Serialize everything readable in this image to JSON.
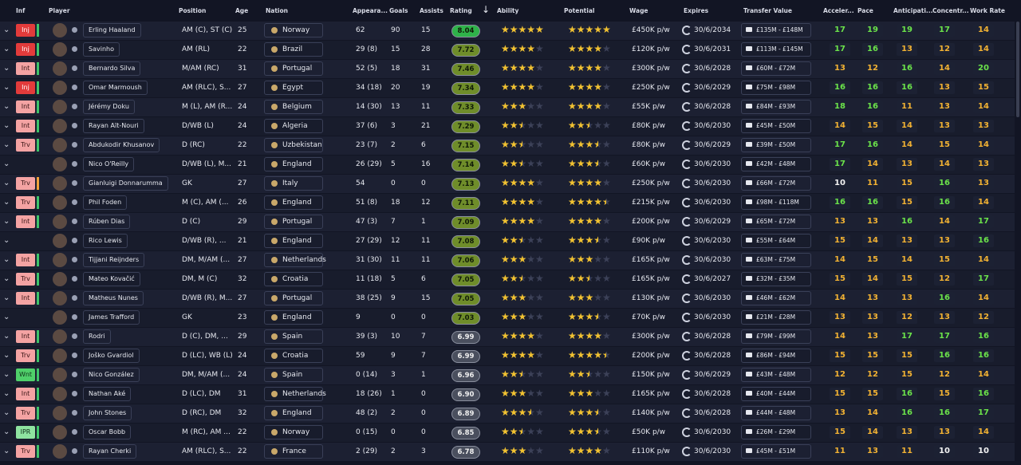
{
  "header": {
    "columns": [
      "Inf",
      "Player",
      "Position",
      "Age",
      "Nation",
      "Appeara...",
      "Goals",
      "Assists",
      "Rating",
      "Ability",
      "Potential",
      "Wage",
      "Expires",
      "Transfer Value",
      "Acceler...",
      "Pace",
      "Anticipati...",
      "Concentr...",
      "Work Rate"
    ]
  },
  "rows": [
    {
      "inf": "Inj",
      "player": "Erling Haaland",
      "position": "AM (C), ST (C)",
      "age": "25",
      "nation": "Norway",
      "apps": "62",
      "goals": "90",
      "assists": "15",
      "rating": "8.04",
      "ability": 5,
      "potential": 5,
      "wage": "£450K p/w",
      "expires": "30/6/2034",
      "value": "£135M - £148M",
      "attrs": [
        "17",
        "19",
        "19",
        "17",
        "14"
      ]
    },
    {
      "inf": "Inj",
      "player": "Savinho",
      "position": "AM (RL)",
      "age": "22",
      "nation": "Brazil",
      "apps": "29 (8)",
      "goals": "15",
      "assists": "28",
      "rating": "7.72",
      "ability": 4,
      "potential": 4,
      "wage": "£120K p/w",
      "expires": "30/6/2031",
      "value": "£113M - £145M",
      "attrs": [
        "17",
        "16",
        "13",
        "12",
        "14"
      ]
    },
    {
      "inf": "Int",
      "player": "Bernardo Silva",
      "position": "M/AM (RC)",
      "age": "31",
      "nation": "Portugal",
      "apps": "52 (5)",
      "goals": "18",
      "assists": "31",
      "rating": "7.46",
      "ability": 4,
      "potential": 4,
      "wage": "£300K p/w",
      "expires": "30/6/2028",
      "value": "£60M - £72M",
      "attrs": [
        "13",
        "12",
        "16",
        "14",
        "20"
      ]
    },
    {
      "inf": "Inj",
      "player": "Omar Marmoush",
      "position": "AM (RLC), S...",
      "age": "27",
      "nation": "Egypt",
      "apps": "34 (18)",
      "goals": "20",
      "assists": "19",
      "rating": "7.34",
      "ability": 4,
      "potential": 4,
      "wage": "£250K p/w",
      "expires": "30/6/2029",
      "value": "£75M - £98M",
      "attrs": [
        "16",
        "16",
        "16",
        "13",
        "15"
      ]
    },
    {
      "inf": "Int",
      "player": "Jérémy Doku",
      "position": "M (L), AM (R...",
      "age": "24",
      "nation": "Belgium",
      "apps": "14 (30)",
      "goals": "13",
      "assists": "11",
      "rating": "7.33",
      "ability": 3,
      "potential": 4,
      "wage": "£55K p/w",
      "expires": "30/6/2028",
      "value": "£84M - £93M",
      "attrs": [
        "18",
        "16",
        "11",
        "13",
        "14"
      ]
    },
    {
      "inf": "Int",
      "player": "Rayan Aït-Nouri",
      "position": "D/WB (L)",
      "age": "24",
      "nation": "Algeria",
      "apps": "37 (6)",
      "goals": "3",
      "assists": "21",
      "rating": "7.29",
      "ability": 2.5,
      "potential": 2.5,
      "wage": "£80K p/w",
      "expires": "30/6/2030",
      "value": "£45M - £50M",
      "attrs": [
        "14",
        "15",
        "14",
        "13",
        "13"
      ]
    },
    {
      "inf": "Trv",
      "player": "Abdukodir Khusanov",
      "position": "D (RC)",
      "age": "22",
      "nation": "Uzbekistan",
      "apps": "23 (7)",
      "goals": "2",
      "assists": "6",
      "rating": "7.15",
      "ability": 2.5,
      "potential": 3.5,
      "wage": "£80K p/w",
      "expires": "30/6/2029",
      "value": "£39M - £50M",
      "attrs": [
        "17",
        "16",
        "14",
        "15",
        "14"
      ]
    },
    {
      "inf": null,
      "player": "Nico O'Reilly",
      "position": "D/WB (L), M...",
      "age": "21",
      "nation": "England",
      "apps": "26 (29)",
      "goals": "5",
      "assists": "16",
      "rating": "7.14",
      "ability": 2.5,
      "potential": 3.5,
      "wage": "£60K p/w",
      "expires": "30/6/2030",
      "value": "£42M - £48M",
      "attrs": [
        "17",
        "14",
        "13",
        "14",
        "13"
      ]
    },
    {
      "inf": "Trv",
      "player": "Gianluigi Donnarumma",
      "position": "GK",
      "age": "27",
      "nation": "Italy",
      "apps": "54",
      "goals": "0",
      "assists": "0",
      "rating": "7.13",
      "ability": 4,
      "potential": 4,
      "wage": "£250K p/w",
      "expires": "30/6/2030",
      "value": "£66M - £72M",
      "attrs": [
        "10",
        "11",
        "15",
        "16",
        "13"
      ]
    },
    {
      "inf": "Trv",
      "player": "Phil Foden",
      "position": "M (C), AM (...",
      "age": "26",
      "nation": "England",
      "apps": "51 (8)",
      "goals": "18",
      "assists": "12",
      "rating": "7.11",
      "ability": 4,
      "potential": 4.5,
      "wage": "£215K p/w",
      "expires": "30/6/2030",
      "value": "£98M - £118M",
      "attrs": [
        "16",
        "16",
        "15",
        "16",
        "14"
      ]
    },
    {
      "inf": "Int",
      "player": "Rúben Dias",
      "position": "D (C)",
      "age": "29",
      "nation": "Portugal",
      "apps": "47 (3)",
      "goals": "7",
      "assists": "1",
      "rating": "7.09",
      "ability": 4,
      "potential": 4,
      "wage": "£200K p/w",
      "expires": "30/6/2029",
      "value": "£65M - £72M",
      "attrs": [
        "13",
        "13",
        "16",
        "14",
        "17"
      ]
    },
    {
      "inf": null,
      "player": "Rico Lewis",
      "position": "D/WB (R), ...",
      "age": "21",
      "nation": "England",
      "apps": "27 (29)",
      "goals": "12",
      "assists": "11",
      "rating": "7.08",
      "ability": 2.5,
      "potential": 3.5,
      "wage": "£90K p/w",
      "expires": "30/6/2030",
      "value": "£55M - £64M",
      "attrs": [
        "15",
        "14",
        "13",
        "13",
        "16"
      ]
    },
    {
      "inf": "Int",
      "player": "Tijjani Reijnders",
      "position": "DM, M/AM (...",
      "age": "27",
      "nation": "Netherlands",
      "apps": "31 (30)",
      "goals": "11",
      "assists": "11",
      "rating": "7.06",
      "ability": 3,
      "potential": 3,
      "wage": "£165K p/w",
      "expires": "30/6/2030",
      "value": "£63M - £75M",
      "attrs": [
        "14",
        "15",
        "14",
        "15",
        "14"
      ]
    },
    {
      "inf": "Trv",
      "player": "Mateo Kovačić",
      "position": "DM, M (C)",
      "age": "32",
      "nation": "Croatia",
      "apps": "11 (18)",
      "goals": "5",
      "assists": "6",
      "rating": "7.05",
      "ability": 2.5,
      "potential": 2.5,
      "wage": "£165K p/w",
      "expires": "30/6/2027",
      "value": "£32M - £35M",
      "attrs": [
        "15",
        "14",
        "15",
        "12",
        "17"
      ]
    },
    {
      "inf": "Int",
      "player": "Matheus Nunes",
      "position": "D/WB (R), M...",
      "age": "27",
      "nation": "Portugal",
      "apps": "38 (25)",
      "goals": "9",
      "assists": "15",
      "rating": "7.05",
      "ability": 3,
      "potential": 3,
      "wage": "£130K p/w",
      "expires": "30/6/2030",
      "value": "£46M - £62M",
      "attrs": [
        "14",
        "13",
        "13",
        "16",
        "14"
      ]
    },
    {
      "inf": null,
      "player": "James Trafford",
      "position": "GK",
      "age": "23",
      "nation": "England",
      "apps": "9",
      "goals": "0",
      "assists": "0",
      "rating": "7.03",
      "ability": 3,
      "potential": 3.5,
      "wage": "£70K p/w",
      "expires": "30/6/2030",
      "value": "£21M - £28M",
      "attrs": [
        "13",
        "13",
        "12",
        "13",
        "12"
      ]
    },
    {
      "inf": "Int",
      "player": "Rodri",
      "position": "D (C), DM, ...",
      "age": "29",
      "nation": "Spain",
      "apps": "39 (3)",
      "goals": "10",
      "assists": "7",
      "rating": "6.99",
      "ability": 4,
      "potential": 4,
      "wage": "£300K p/w",
      "expires": "30/6/2028",
      "value": "£79M - £99M",
      "attrs": [
        "14",
        "13",
        "17",
        "17",
        "16"
      ]
    },
    {
      "inf": "Trv",
      "player": "Joško Gvardiol",
      "position": "D (LC), WB (L)",
      "age": "24",
      "nation": "Croatia",
      "apps": "59",
      "goals": "9",
      "assists": "7",
      "rating": "6.99",
      "ability": 4,
      "potential": 4.5,
      "wage": "£200K p/w",
      "expires": "30/6/2028",
      "value": "£86M - £94M",
      "attrs": [
        "15",
        "15",
        "15",
        "16",
        "16"
      ]
    },
    {
      "inf": "Wnt",
      "player": "Nico González",
      "position": "DM, M/AM (...",
      "age": "24",
      "nation": "Spain",
      "apps": "0 (14)",
      "goals": "3",
      "assists": "1",
      "rating": "6.96",
      "ability": 2.5,
      "potential": 2.5,
      "wage": "£150K p/w",
      "expires": "30/6/2029",
      "value": "£43M - £48M",
      "attrs": [
        "12",
        "12",
        "15",
        "12",
        "14"
      ]
    },
    {
      "inf": "Int",
      "player": "Nathan Aké",
      "position": "D (LC), DM",
      "age": "31",
      "nation": "Netherlands",
      "apps": "18 (26)",
      "goals": "1",
      "assists": "0",
      "rating": "6.90",
      "ability": 3,
      "potential": 3,
      "wage": "£165K p/w",
      "expires": "30/6/2028",
      "value": "£40M - £44M",
      "attrs": [
        "15",
        "15",
        "16",
        "15",
        "16"
      ]
    },
    {
      "inf": "Trv",
      "player": "John Stones",
      "position": "D (RC), DM",
      "age": "32",
      "nation": "England",
      "apps": "48 (2)",
      "goals": "2",
      "assists": "0",
      "rating": "6.89",
      "ability": 3.5,
      "potential": 3.5,
      "wage": "£140K p/w",
      "expires": "30/6/2028",
      "value": "£44M - £48M",
      "attrs": [
        "13",
        "14",
        "16",
        "16",
        "17"
      ]
    },
    {
      "inf": "IPR",
      "player": "Oscar Bobb",
      "position": "M (RC), AM ...",
      "age": "22",
      "nation": "Norway",
      "apps": "0 (15)",
      "goals": "0",
      "assists": "0",
      "rating": "6.85",
      "ability": 2.5,
      "potential": 3.5,
      "wage": "£50K p/w",
      "expires": "30/6/2030",
      "value": "£26M - £29M",
      "attrs": [
        "15",
        "14",
        "13",
        "13",
        "14"
      ]
    },
    {
      "inf": "Trv",
      "player": "Rayan Cherki",
      "position": "AM (RLC), S...",
      "age": "22",
      "nation": "France",
      "apps": "2 (29)",
      "goals": "2",
      "assists": "3",
      "rating": "6.78",
      "ability": 3,
      "potential": 4,
      "wage": "£110K p/w",
      "expires": "30/6/2030",
      "value": "£45M - £51M",
      "attrs": [
        "11",
        "13",
        "11",
        "10",
        "10"
      ]
    }
  ]
}
